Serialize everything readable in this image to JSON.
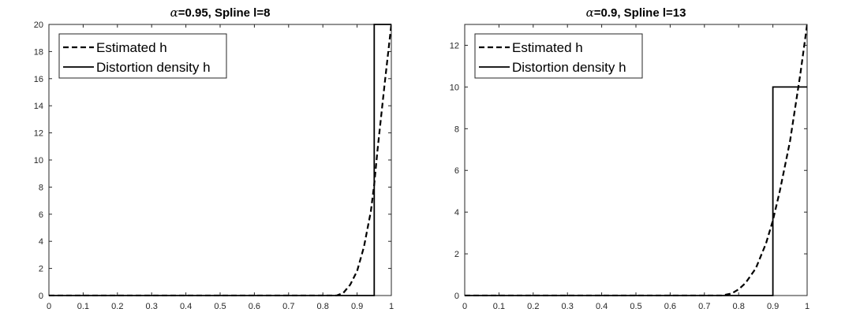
{
  "chart_data": [
    {
      "type": "line",
      "title_symbol": "α",
      "title": "=0.95, Spline l=8",
      "xlabel": "",
      "ylabel": "",
      "xlim": [
        0,
        1
      ],
      "ylim": [
        0,
        20
      ],
      "x_ticks": [
        "0",
        "0.1",
        "0.2",
        "0.3",
        "0.4",
        "0.5",
        "0.6",
        "0.7",
        "0.8",
        "0.9",
        "1"
      ],
      "y_ticks": [
        "0",
        "2",
        "4",
        "6",
        "8",
        "10",
        "12",
        "14",
        "16",
        "18",
        "20"
      ],
      "grid": false,
      "legend_placement": "top-left",
      "series": [
        {
          "name": "Estimated h",
          "style": "dashed",
          "color": "#000000",
          "x": [
            0,
            0.8,
            0.84,
            0.86,
            0.88,
            0.9,
            0.92,
            0.94,
            0.95,
            0.96,
            0.98,
            1.0
          ],
          "y": [
            0,
            0,
            0,
            0.2,
            0.8,
            1.8,
            3.6,
            6.2,
            8.2,
            10.8,
            15.5,
            20
          ]
        },
        {
          "name": "Distortion density h",
          "style": "solid",
          "color": "#000000",
          "x": [
            0,
            0.95,
            0.95,
            1.0
          ],
          "y": [
            0,
            0,
            20,
            20
          ]
        }
      ]
    },
    {
      "type": "line",
      "title_symbol": "α",
      "title": "=0.9, Spline l=13",
      "xlabel": "",
      "ylabel": "",
      "xlim": [
        0,
        1
      ],
      "ylim": [
        0,
        13
      ],
      "x_ticks": [
        "0",
        "0.1",
        "0.2",
        "0.3",
        "0.4",
        "0.5",
        "0.6",
        "0.7",
        "0.8",
        "0.9",
        "1"
      ],
      "y_ticks": [
        "0",
        "2",
        "4",
        "6",
        "8",
        "10",
        "12"
      ],
      "grid": false,
      "legend_placement": "top-left",
      "series": [
        {
          "name": "Estimated h",
          "style": "dashed",
          "color": "#000000",
          "x": [
            0,
            0.7,
            0.75,
            0.78,
            0.8,
            0.82,
            0.85,
            0.88,
            0.9,
            0.92,
            0.95,
            0.98,
            1.0
          ],
          "y": [
            0,
            0,
            0,
            0.1,
            0.3,
            0.6,
            1.3,
            2.5,
            3.6,
            5.0,
            7.4,
            10.6,
            13
          ]
        },
        {
          "name": "Distortion density h",
          "style": "solid",
          "color": "#000000",
          "x": [
            0,
            0.9,
            0.9,
            1.0
          ],
          "y": [
            0,
            0,
            10,
            10
          ]
        }
      ]
    }
  ]
}
